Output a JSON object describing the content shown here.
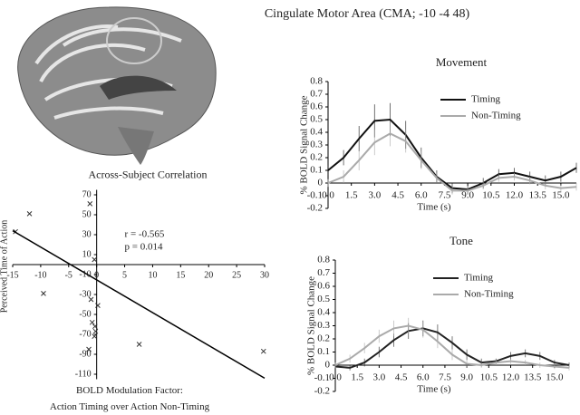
{
  "title": "Cingulate Motor Area (CMA; -10 -4 48)",
  "chart_data": [
    {
      "type": "scatter",
      "title": "Across-Subject Correlation",
      "x_label": [
        "BOLD Modulation Factor:",
        "Action Timing over Action Non-Timing"
      ],
      "y_label": "Perceived Time of Action",
      "annotations": [
        "r = -0.565",
        "p = 0.014"
      ],
      "xlim": [
        -15,
        30
      ],
      "ylim": [
        -115,
        75
      ],
      "xticks": [
        -15,
        -10,
        -5,
        0,
        5,
        10,
        15,
        20,
        25,
        30
      ],
      "yticks": [
        70,
        50,
        30,
        10,
        -10,
        -30,
        -50,
        -70,
        -90,
        -110
      ],
      "x": [
        -12,
        -1.2,
        -14.5,
        -0.4,
        -9.5,
        -1,
        0.2,
        -0.8,
        -0.3,
        -0.2,
        -0.4,
        -1.4,
        7.6,
        29.8
      ],
      "values": [
        51,
        61,
        33,
        5,
        -29,
        -35,
        -41,
        -58,
        -62,
        -67,
        -72,
        -85,
        -80,
        -87
      ],
      "color": "#333333",
      "fit": {
        "x": [
          -15,
          30
        ],
        "values": [
          34,
          -114
        ],
        "color": "#000000"
      }
    },
    {
      "type": "line",
      "title": "Movement",
      "x_label": "Time (s)",
      "y_label": "% BOLD Signal Change",
      "legend": "upper right",
      "xlim": [
        0,
        16
      ],
      "ylim": [
        -0.2,
        0.8
      ],
      "xticks": [
        {
          "value": 0,
          "label": "0.0"
        },
        1.5,
        {
          "value": 3,
          "label": "3.0"
        },
        4.5,
        {
          "value": 6,
          "label": "6.0"
        },
        7.5,
        {
          "value": 9,
          "label": "9.0"
        },
        10.5,
        {
          "value": 12,
          "label": "12.0"
        },
        13.5,
        {
          "value": 15,
          "label": "15.0"
        }
      ],
      "yticks": [
        -0.2,
        -0.1,
        0,
        0.1,
        0.2,
        0.3,
        0.4,
        0.5,
        0.6,
        0.7,
        0.8
      ],
      "x": [
        0,
        1,
        2,
        3,
        4,
        5,
        6,
        7,
        8,
        9,
        10,
        11,
        12,
        13,
        14,
        15,
        16
      ],
      "series": [
        {
          "name": "Timing",
          "color": "#111111",
          "values": [
            0.1,
            0.2,
            0.35,
            0.49,
            0.5,
            0.38,
            0.2,
            0.05,
            -0.04,
            -0.05,
            0.0,
            0.07,
            0.08,
            0.05,
            0.02,
            0.05,
            0.12
          ],
          "errors": [
            0.04,
            0.06,
            0.1,
            0.13,
            0.13,
            0.11,
            0.08,
            0.05,
            0.04,
            0.04,
            0.04,
            0.04,
            0.04,
            0.04,
            0.04,
            0.04,
            0.04
          ]
        },
        {
          "name": "Non-Timing",
          "color": "#aaaaaa",
          "values": [
            0.0,
            0.05,
            0.18,
            0.32,
            0.39,
            0.33,
            0.18,
            0.04,
            -0.06,
            -0.06,
            -0.02,
            0.04,
            0.05,
            0.02,
            -0.02,
            -0.04,
            -0.03
          ],
          "errors": [
            0.03,
            0.05,
            0.08,
            0.1,
            0.1,
            0.09,
            0.07,
            0.04,
            0.03,
            0.03,
            0.03,
            0.03,
            0.03,
            0.03,
            0.03,
            0.03,
            0.03
          ]
        }
      ]
    },
    {
      "type": "line",
      "title": "Tone",
      "x_label": "Time (s)",
      "y_label": "% BOLD Signal Change",
      "legend": "upper right",
      "xlim": [
        0,
        16
      ],
      "ylim": [
        -0.2,
        0.8
      ],
      "xticks": [
        {
          "value": 0,
          "label": "0.0"
        },
        1.5,
        {
          "value": 3,
          "label": "3.0"
        },
        4.5,
        {
          "value": 6,
          "label": "6.0"
        },
        7.5,
        {
          "value": 9,
          "label": "9.0"
        },
        10.5,
        {
          "value": 12,
          "label": "12.0"
        },
        13.5,
        {
          "value": 15,
          "label": "15.0"
        }
      ],
      "yticks": [
        -0.2,
        -0.1,
        0,
        0.1,
        0.2,
        0.3,
        0.4,
        0.5,
        0.6,
        0.7,
        0.8
      ],
      "x": [
        0,
        1,
        2,
        3,
        4,
        5,
        6,
        7,
        8,
        9,
        10,
        11,
        12,
        13,
        14,
        15,
        16
      ],
      "series": [
        {
          "name": "Timing",
          "color": "#222222",
          "values": [
            -0.01,
            -0.02,
            0.02,
            0.1,
            0.19,
            0.26,
            0.28,
            0.25,
            0.17,
            0.08,
            0.02,
            0.03,
            0.07,
            0.09,
            0.07,
            0.02,
            0.0
          ],
          "errors": [
            0.02,
            0.02,
            0.03,
            0.04,
            0.05,
            0.06,
            0.06,
            0.06,
            0.05,
            0.04,
            0.03,
            0.02,
            0.03,
            0.03,
            0.03,
            0.02,
            0.02
          ]
        },
        {
          "name": "Non-Timing",
          "color": "#aaaaaa",
          "values": [
            0.0,
            0.05,
            0.13,
            0.22,
            0.28,
            0.3,
            0.27,
            0.18,
            0.08,
            0.01,
            0.0,
            0.02,
            0.03,
            0.02,
            0.0,
            -0.01,
            -0.02
          ],
          "errors": [
            0.02,
            0.03,
            0.04,
            0.05,
            0.06,
            0.06,
            0.06,
            0.05,
            0.04,
            0.03,
            0.02,
            0.02,
            0.02,
            0.02,
            0.02,
            0.02,
            0.02
          ]
        }
      ]
    }
  ]
}
